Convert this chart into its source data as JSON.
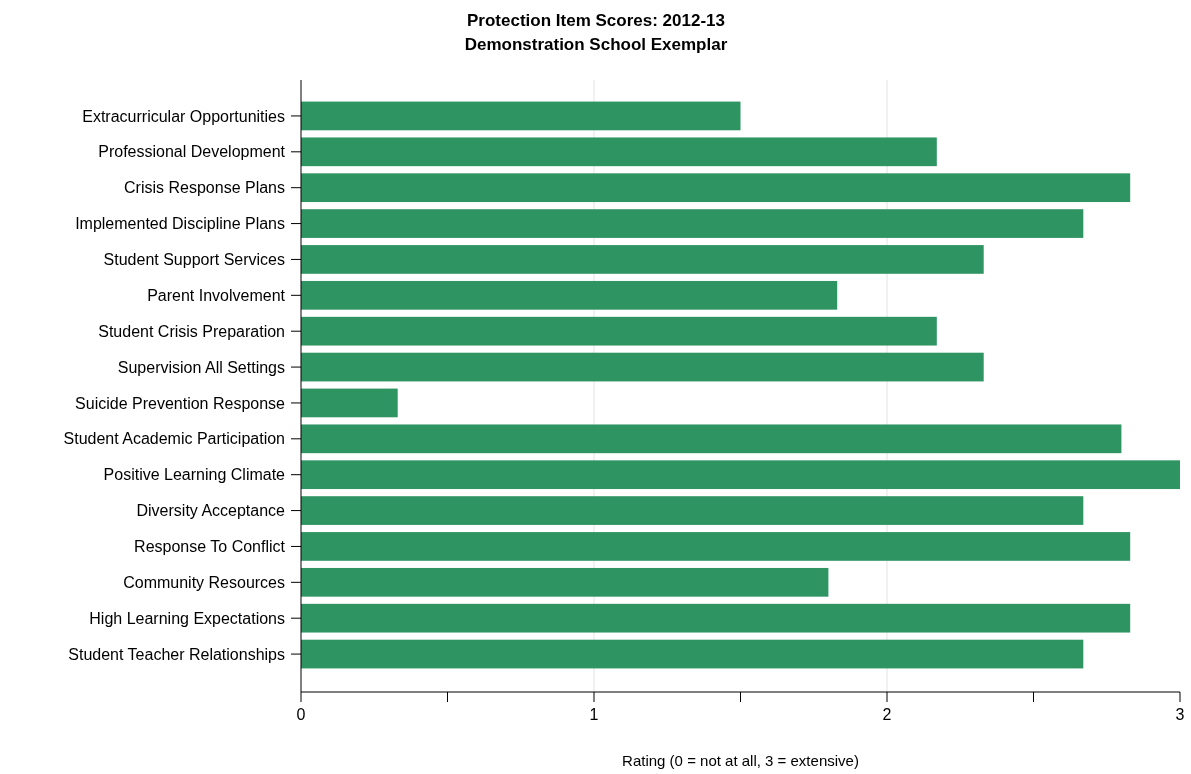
{
  "chart_data": {
    "type": "bar",
    "orientation": "horizontal",
    "title": "Protection Item Scores: 2012-13",
    "subtitle": "Demonstration School Exemplar",
    "xlabel": "Rating (0 = not at all, 3 = extensive)",
    "categories": [
      "Extracurricular Opportunities",
      "Professional Development",
      "Crisis Response Plans",
      "Implemented Discipline Plans",
      "Student Support Services",
      "Parent Involvement",
      "Student Crisis Preparation",
      "Supervision All Settings",
      "Suicide Prevention Response",
      "Student Academic Participation",
      "Positive Learning Climate",
      "Diversity Acceptance",
      "Response To Conflict",
      "Community Resources",
      "High Learning Expectations",
      "Student Teacher Relationships"
    ],
    "values": [
      1.5,
      2.17,
      2.83,
      2.67,
      2.33,
      1.83,
      2.17,
      2.33,
      0.33,
      2.8,
      3,
      2.67,
      2.83,
      1.8,
      2.83,
      2.67
    ],
    "color": "#2e9462",
    "xlim": [
      0,
      3
    ],
    "xticks": [
      0,
      {
        "value": 0.5,
        "label": null
      },
      1,
      {
        "value": 1.5,
        "label": null
      },
      2,
      {
        "value": 2.5,
        "label": null
      },
      3
    ],
    "grid": "x"
  }
}
